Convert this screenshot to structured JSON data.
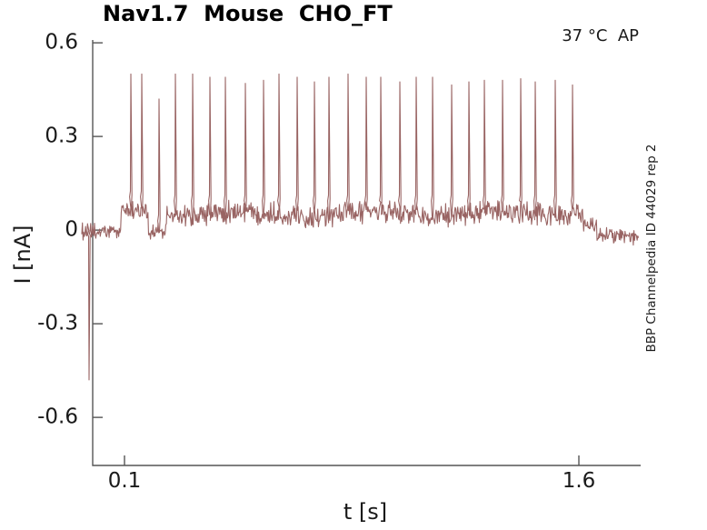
{
  "chart_data": {
    "type": "line",
    "title": "Nav1.7  Mouse  CHO_FT",
    "annotation_top_right": "37 °C  AP",
    "xlabel": "t [s]",
    "ylabel": "I [nA]",
    "watermark": "BBP Channelpedia ID 44029 rep 2",
    "legend": null,
    "grid": false,
    "xlim": [
      -0.005,
      1.804
    ],
    "ylim": [
      -0.754,
      0.609
    ],
    "x_ticks": [
      {
        "v": 0.1,
        "label": "0.1"
      },
      {
        "v": 1.6,
        "label": "1.6"
      }
    ],
    "y_ticks": [
      {
        "v": 0.6,
        "label": "0.6"
      },
      {
        "v": 0.3,
        "label": "0.3"
      },
      {
        "v": 0,
        "label": "0"
      },
      {
        "v": -0.3,
        "label": "-0.3"
      },
      {
        "v": -0.6,
        "label": "-0.6"
      }
    ],
    "line_color": "#996463",
    "axis_color": "#555555",
    "text_color": "#1a1a1a",
    "baseline_segments": [
      {
        "t0": -0.041,
        "t1": 0.088,
        "level": 0.0,
        "noise": 0.02
      },
      {
        "t0": 0.088,
        "t1": 0.178,
        "level": 0.065,
        "noise": 0.022
      },
      {
        "t0": 0.178,
        "t1": 0.238,
        "level": -0.012,
        "noise": 0.02
      },
      {
        "t0": 0.238,
        "t1": 1.615,
        "level": 0.052,
        "noise": 0.027
      },
      {
        "t0": 1.615,
        "t1": 1.66,
        "level": 0.015,
        "noise": 0.022
      },
      {
        "t0": 1.66,
        "t1": 1.798,
        "level": -0.018,
        "noise": 0.018
      }
    ],
    "initial_transient": {
      "t": -0.017,
      "peak": -0.48
    },
    "spikes": [
      {
        "t": 0.121,
        "peak": 0.5
      },
      {
        "t": 0.157,
        "peak": 0.5
      },
      {
        "t": 0.214,
        "peak": 0.42
      },
      {
        "t": 0.268,
        "peak": 0.5
      },
      {
        "t": 0.325,
        "peak": 0.5
      },
      {
        "t": 0.382,
        "peak": 0.49
      },
      {
        "t": 0.433,
        "peak": 0.49
      },
      {
        "t": 0.499,
        "peak": 0.47
      },
      {
        "t": 0.559,
        "peak": 0.48
      },
      {
        "t": 0.61,
        "peak": 0.5
      },
      {
        "t": 0.67,
        "peak": 0.49
      },
      {
        "t": 0.727,
        "peak": 0.475
      },
      {
        "t": 0.775,
        "peak": 0.49
      },
      {
        "t": 0.838,
        "peak": 0.5
      },
      {
        "t": 0.898,
        "peak": 0.49
      },
      {
        "t": 0.946,
        "peak": 0.49
      },
      {
        "t": 1.009,
        "peak": 0.475
      },
      {
        "t": 1.063,
        "peak": 0.49
      },
      {
        "t": 1.117,
        "peak": 0.49
      },
      {
        "t": 1.18,
        "peak": 0.465
      },
      {
        "t": 1.237,
        "peak": 0.475
      },
      {
        "t": 1.288,
        "peak": 0.48
      },
      {
        "t": 1.348,
        "peak": 0.48
      },
      {
        "t": 1.408,
        "peak": 0.485
      },
      {
        "t": 1.456,
        "peak": 0.475
      },
      {
        "t": 1.522,
        "peak": 0.48
      },
      {
        "t": 1.579,
        "peak": 0.465
      }
    ]
  }
}
